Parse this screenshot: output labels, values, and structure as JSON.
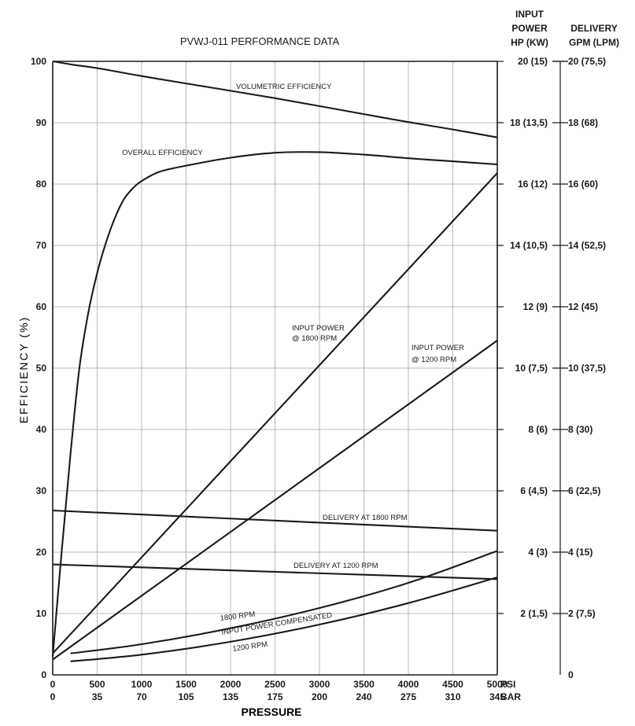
{
  "chart_data": {
    "type": "line",
    "title": "PVWJ-011 PERFORMANCE DATA",
    "ylabel": "EFFICIENCY (%)",
    "xlabel": "PRESSURE",
    "xlim": [
      0,
      5000
    ],
    "ylim": [
      0,
      100
    ],
    "grid": true,
    "x_ticks_psi": [
      "0",
      "500",
      "1000",
      "1500",
      "2000",
      "2500",
      "3000",
      "3500",
      "4000",
      "4500",
      "5000"
    ],
    "x_ticks_bar": [
      "0",
      "35",
      "70",
      "105",
      "135",
      "175",
      "200",
      "240",
      "275",
      "310",
      "345"
    ],
    "x_unit_psi": "PSI",
    "x_unit_bar": "BAR",
    "y_ticks": [
      "0",
      "10",
      "20",
      "30",
      "40",
      "50",
      "60",
      "70",
      "80",
      "90",
      "100"
    ],
    "right_axis_headers": {
      "power": [
        "INPUT",
        "POWER",
        "HP (KW)"
      ],
      "delivery": [
        "DELIVERY",
        "GPM (LPM)"
      ]
    },
    "right_axis_power_ticks": [
      "2 (1,5)",
      "4 (3)",
      "6 (4,5)",
      "8 (6)",
      "10 (7,5)",
      "12 (9)",
      "14 (10,5)",
      "16 (12)",
      "18 (13,5)",
      "20 (15)"
    ],
    "right_axis_delivery_ticks": [
      "0",
      "2 (7,5)",
      "4 (15)",
      "6 (22,5)",
      "8 (30)",
      "10 (37,5)",
      "12 (45)",
      "14 (52,5)",
      "16 (60)",
      "18 (68)",
      "20 (75,5)"
    ],
    "series": [
      {
        "name": "VOLUMETRIC EFFICIENCY",
        "x": [
          0,
          250,
          500,
          1000,
          1500,
          2000,
          2500,
          3000,
          3500,
          4000,
          4500,
          5000
        ],
        "y": [
          100,
          99.4,
          98.9,
          97.6,
          96.4,
          95.2,
          94.0,
          92.7,
          91.4,
          90.1,
          88.9,
          87.6
        ]
      },
      {
        "name": "OVERALL EFFICIENCY",
        "x": [
          0,
          100,
          200,
          300,
          400,
          500,
          600,
          700,
          800,
          900,
          1000,
          1200,
          1500,
          2000,
          2500,
          3000,
          3500,
          4000,
          4500,
          5000
        ],
        "y": [
          3,
          20,
          36,
          50,
          59,
          65.5,
          70.5,
          74.5,
          77.5,
          79.3,
          80.5,
          82,
          83,
          84.3,
          85.1,
          85.2,
          84.8,
          84.2,
          83.7,
          83.2
        ]
      },
      {
        "name": "INPUT POWER @ 1800 RPM",
        "x": [
          0,
          5000
        ],
        "y": [
          3.5,
          81.8
        ]
      },
      {
        "name": "INPUT POWER @ 1200 RPM",
        "x": [
          0,
          5000
        ],
        "y": [
          2.5,
          54.5
        ]
      },
      {
        "name": "DELIVERY AT 1800 RPM",
        "x": [
          0,
          5000
        ],
        "y": [
          26.8,
          23.5
        ]
      },
      {
        "name": "DELIVERY AT 1200 RPM",
        "x": [
          0,
          5000
        ],
        "y": [
          18.0,
          15.6
        ]
      },
      {
        "name": "1800 RPM INPUT POWER COMPENSATED",
        "x": [
          200,
          1000,
          2000,
          3000,
          4000,
          5000
        ],
        "y": [
          3.5,
          5.0,
          7.6,
          10.9,
          15.0,
          20.2
        ]
      },
      {
        "name": "1200 RPM INPUT POWER COMPENSATED",
        "x": [
          200,
          1000,
          2000,
          3000,
          4000,
          5000
        ],
        "y": [
          2.2,
          3.3,
          5.4,
          8.2,
          11.7,
          15.9
        ]
      }
    ],
    "annotations": {
      "volumetric": "VOLUMETRIC EFFICIENCY",
      "overall": "OVERALL EFFICIENCY",
      "ip1800_line1": "INPUT POWER",
      "ip1800_line2": "@ 1800 RPM",
      "ip1200_line1": "INPUT POWER",
      "ip1200_line2": "@ 1200 RPM",
      "del1800": "DELIVERY AT 1800 RPM",
      "del1200": "DELIVERY AT 1200 RPM",
      "comp1800": "1800 RPM",
      "comp_mid": "INPUT POWER COMPENSATED",
      "comp1200": "1200 RPM"
    }
  }
}
